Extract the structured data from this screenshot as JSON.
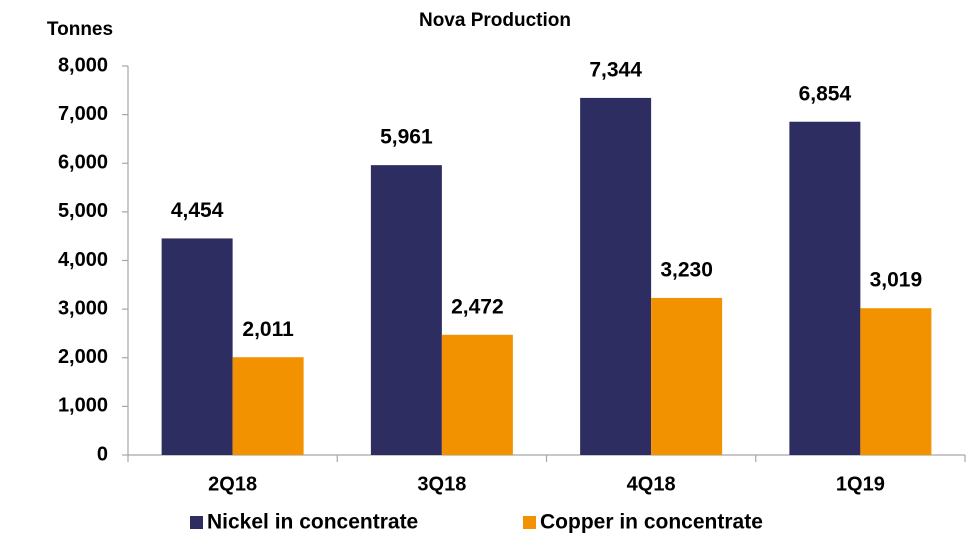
{
  "chart_data": {
    "type": "bar",
    "title": "Nova Production",
    "y_label": "Tonnes",
    "categories": [
      "2Q18",
      "3Q18",
      "4Q18",
      "1Q19"
    ],
    "series": [
      {
        "name": "Nickel in concentrate",
        "color": "#2e2d62",
        "values": [
          4454,
          5961,
          7344,
          6854
        ],
        "value_labels": [
          "4,454",
          "5,961",
          "7,344",
          "6,854"
        ]
      },
      {
        "name": "Copper in concentrate",
        "color": "#f39200",
        "values": [
          2011,
          2472,
          3230,
          3019
        ],
        "value_labels": [
          "2,011",
          "2,472",
          "3,230",
          "3,019"
        ]
      }
    ],
    "ylim": [
      0,
      8000
    ],
    "yticks": [
      0,
      {
        "value": 1000,
        "label": "1,000"
      },
      {
        "value": 2000,
        "label": "2,000"
      },
      {
        "value": 3000,
        "label": "3,000"
      },
      {
        "value": 4000,
        "label": "4,000"
      },
      {
        "value": 5000,
        "label": "5,000"
      },
      {
        "value": 6000,
        "label": "6,000"
      },
      {
        "value": 7000,
        "label": "7,000"
      },
      {
        "value": 8000,
        "label": "8,000"
      }
    ],
    "grid": false,
    "legend": "bottom"
  }
}
